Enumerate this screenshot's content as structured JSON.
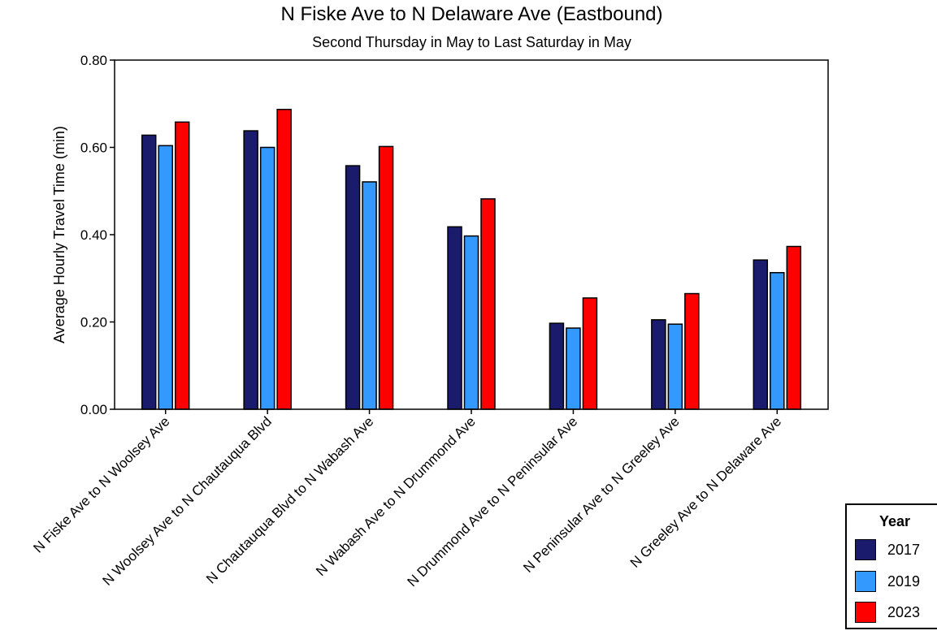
{
  "chart_data": {
    "type": "bar",
    "title": "N Fiske Ave to N Delaware Ave (Eastbound)",
    "subtitle": "Second Thursday in May to Last Saturday in May",
    "ylabel": "Average Hourly Travel Time (min)",
    "xlabel": "",
    "ylim": [
      0,
      0.8
    ],
    "yticks": [
      "0.00",
      "0.20",
      "0.40",
      "0.60",
      "0.80"
    ],
    "ytick_values": [
      0,
      0.2,
      0.4,
      0.6,
      0.8
    ],
    "grid": false,
    "legend_title": "Year",
    "legend_position": "bottom-right",
    "categories": [
      "N Fiske Ave to N Woolsey Ave",
      "N Woolsey Ave to N Chautauqua Blvd",
      "N Chautauqua Blvd to N Wabash Ave",
      "N Wabash Ave to N Drummond Ave",
      "N Drummond Ave to N Peninsular Ave",
      "N Peninsular Ave to N Greeley Ave",
      "N Greeley Ave to N Delaware Ave"
    ],
    "series": [
      {
        "name": "2017",
        "color": "#1b1b6e",
        "values": [
          0.628,
          0.638,
          0.558,
          0.418,
          0.197,
          0.205,
          0.342
        ]
      },
      {
        "name": "2019",
        "color": "#3399ff",
        "values": [
          0.604,
          0.6,
          0.521,
          0.397,
          0.186,
          0.195,
          0.313
        ]
      },
      {
        "name": "2023",
        "color": "#ff0000",
        "values": [
          0.658,
          0.687,
          0.602,
          0.482,
          0.255,
          0.265,
          0.373
        ]
      }
    ]
  }
}
